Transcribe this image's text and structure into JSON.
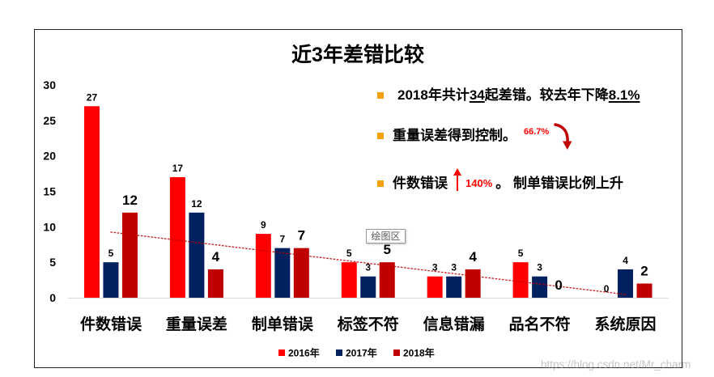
{
  "colors": {
    "bullet": "#F5A10A",
    "highlight": "#FF0000",
    "arrow": "#C00000",
    "axis_line": "#D9D9D9"
  },
  "annotations": {
    "summary": {
      "text_a": "2018年共计",
      "count": "34",
      "text_b": "起差错。较去年下降",
      "decline": "8.1%"
    },
    "weight": {
      "text": "重量误差得到控制。",
      "percent": "66.7%",
      "icon": "curved-down-arrow"
    },
    "count": {
      "text": "件数错误",
      "icon": "up-arrow",
      "percent": "140%",
      "tail": "。 制单错误比例上升"
    }
  },
  "tooltip": {
    "label": "绘图区"
  },
  "watermark": {
    "text": "https://blog.csdn.net/Mr_charm"
  },
  "chart_data": {
    "type": "bar",
    "title": "近3年差错比较",
    "categories": [
      "件数错误",
      "重量误差",
      "制单错误",
      "标签不符",
      "信息错漏",
      "品名不符",
      "系统原因"
    ],
    "series": [
      {
        "name": "2016年",
        "values": [
          27,
          17,
          9,
          5,
          3,
          5,
          0
        ],
        "color": "#FF0000"
      },
      {
        "name": "2017年",
        "values": [
          5,
          12,
          7,
          3,
          3,
          3,
          4
        ],
        "color": "#002060"
      },
      {
        "name": "2018年",
        "values": [
          12,
          4,
          7,
          5,
          4,
          0,
          2
        ],
        "color": "#C00000",
        "label_color": "#FF0000"
      }
    ],
    "ylim": [
      0,
      30
    ],
    "yticks": [
      0,
      5,
      10,
      15,
      20,
      25,
      30
    ],
    "data_labels": true,
    "grid": false,
    "legend": "bottom",
    "trendline": {
      "series": "2018年",
      "type": "linear"
    }
  }
}
